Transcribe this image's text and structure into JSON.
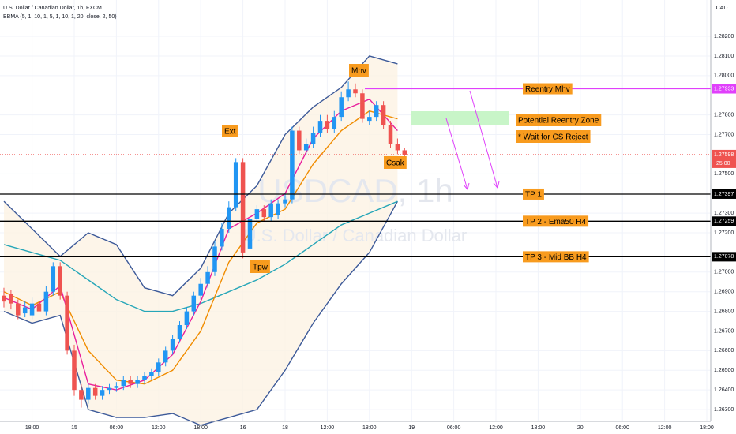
{
  "chart_data": {
    "type": "candlestick",
    "title": "U.S. Dollar / Canadian Dollar, 1h, FXCM",
    "indicator": "BBMA (5, 1, 10, 1, 5, 1, 10, 1, 20, close, 2, 50)",
    "watermark_symbol": "USDCAD, 1h",
    "watermark_name": "U.S. Dollar / Canadian Dollar",
    "currency": "CAD",
    "up_color": "#2196f3",
    "down_color": "#ef5350",
    "x": [
      0,
      1,
      2,
      3,
      4,
      5,
      6,
      7,
      8,
      9,
      10,
      11,
      12,
      13,
      14,
      15,
      16,
      17,
      18,
      19,
      20,
      21,
      22,
      23,
      24,
      25,
      26,
      27,
      28,
      29,
      30,
      31,
      32,
      33,
      34,
      35,
      36,
      37,
      38,
      39,
      40,
      41,
      42,
      43,
      44,
      45,
      46,
      47,
      48,
      49,
      50,
      51,
      52,
      53,
      54,
      55,
      56,
      57
    ],
    "open": [
      1.2688,
      1.2689,
      1.2684,
      1.2679,
      1.2678,
      1.2684,
      1.268,
      1.269,
      1.2703,
      1.2688,
      1.266,
      1.264,
      1.2635,
      1.2641,
      1.2637,
      1.264,
      1.2641,
      1.2642,
      1.2645,
      1.2643,
      1.2645,
      1.2647,
      1.2649,
      1.2654,
      1.266,
      1.2666,
      1.2673,
      1.268,
      1.2688,
      1.2694,
      1.27,
      1.2713,
      1.2722,
      1.2733,
      1.2756,
      1.2712,
      1.2727,
      1.2732,
      1.2728,
      1.2729,
      1.2735,
      1.2737,
      1.2772,
      1.2762,
      1.2765,
      1.2771,
      1.2777,
      1.2773,
      1.2779,
      1.2789,
      1.2793,
      1.2791,
      1.2777,
      1.2779,
      1.2785,
      1.2775,
      1.2765,
      1.2762
    ],
    "high": [
      1.2692,
      1.2691,
      1.2686,
      1.2685,
      1.2687,
      1.2686,
      1.2693,
      1.2705,
      1.2705,
      1.269,
      1.2663,
      1.2643,
      1.2643,
      1.2643,
      1.2642,
      1.2643,
      1.2644,
      1.2647,
      1.2647,
      1.2647,
      1.2649,
      1.2651,
      1.2656,
      1.2662,
      1.2668,
      1.2675,
      1.2682,
      1.269,
      1.2697,
      1.2703,
      1.2716,
      1.2725,
      1.2736,
      1.2758,
      1.2758,
      1.273,
      1.2734,
      1.2734,
      1.2737,
      1.2737,
      1.274,
      1.2774,
      1.2774,
      1.2768,
      1.2774,
      1.278,
      1.278,
      1.2782,
      1.2792,
      1.2797,
      1.2796,
      1.2793,
      1.2782,
      1.2787,
      1.2787,
      1.2777,
      1.2768,
      1.2763
    ],
    "low": [
      1.2682,
      1.2681,
      1.2676,
      1.2677,
      1.2676,
      1.2678,
      1.2678,
      1.2688,
      1.2686,
      1.2658,
      1.2637,
      1.2631,
      1.2633,
      1.2635,
      1.2635,
      1.2638,
      1.2639,
      1.264,
      1.2641,
      1.2641,
      1.2643,
      1.2645,
      1.2647,
      1.2652,
      1.2658,
      1.2664,
      1.2671,
      1.2678,
      1.2686,
      1.2692,
      1.2698,
      1.2711,
      1.272,
      1.2731,
      1.2707,
      1.271,
      1.2725,
      1.2726,
      1.2726,
      1.2727,
      1.2733,
      1.2735,
      1.276,
      1.276,
      1.2763,
      1.2769,
      1.2771,
      1.2771,
      1.2777,
      1.2787,
      1.2789,
      1.2776,
      1.2775,
      1.2777,
      1.2773,
      1.2763,
      1.276,
      1.2758
    ],
    "close": [
      1.2685,
      1.2684,
      1.2678,
      1.2682,
      1.2684,
      1.268,
      1.269,
      1.2703,
      1.2688,
      1.266,
      1.264,
      1.2635,
      1.2641,
      1.2637,
      1.264,
      1.2641,
      1.2642,
      1.2645,
      1.2643,
      1.2645,
      1.2647,
      1.2649,
      1.2654,
      1.266,
      1.2666,
      1.2673,
      1.268,
      1.2688,
      1.2694,
      1.27,
      1.2713,
      1.2722,
      1.2733,
      1.2756,
      1.271,
      1.2727,
      1.2732,
      1.2728,
      1.2735,
      1.2735,
      1.2737,
      1.2772,
      1.2762,
      1.2765,
      1.2771,
      1.2777,
      1.2773,
      1.2779,
      1.2789,
      1.2793,
      1.2791,
      1.2778,
      1.2779,
      1.2785,
      1.2775,
      1.2765,
      1.2762,
      1.27598
    ],
    "series": [
      {
        "color": "#3d5a99",
        "x": [
          0,
          4,
          8,
          12,
          16,
          20,
          24,
          28,
          32,
          36,
          40,
          44,
          48,
          52,
          56
        ],
        "values": [
          1.2736,
          1.2722,
          1.2708,
          1.272,
          1.2714,
          1.2692,
          1.2688,
          1.2702,
          1.273,
          1.2744,
          1.277,
          1.2784,
          1.2794,
          1.281,
          1.2806
        ]
      },
      {
        "color": "#3d5a99",
        "x": [
          0,
          4,
          8,
          12,
          16,
          20,
          24,
          28,
          32,
          36,
          40,
          44,
          48,
          52,
          56
        ],
        "values": [
          1.268,
          1.2674,
          1.2678,
          1.263,
          1.2626,
          1.2626,
          1.2628,
          1.2622,
          1.2626,
          1.263,
          1.265,
          1.2674,
          1.2694,
          1.271,
          1.2736
        ]
      },
      {
        "color": "#26a6b8",
        "x": [
          0,
          4,
          8,
          12,
          16,
          20,
          24,
          28,
          32,
          36,
          40,
          44,
          48,
          52,
          56
        ],
        "values": [
          1.2714,
          1.271,
          1.2706,
          1.2696,
          1.2686,
          1.268,
          1.268,
          1.2684,
          1.269,
          1.2696,
          1.2704,
          1.2714,
          1.2724,
          1.273,
          1.2736
        ]
      },
      {
        "color": "#f08c00",
        "x": [
          0,
          4,
          8,
          12,
          16,
          20,
          24,
          28,
          32,
          36,
          40,
          44,
          48,
          52,
          56
        ],
        "values": [
          1.269,
          1.2683,
          1.269,
          1.266,
          1.2645,
          1.2643,
          1.265,
          1.267,
          1.2705,
          1.2725,
          1.2732,
          1.2755,
          1.2772,
          1.2782,
          1.2778
        ]
      },
      {
        "color": "#e91e9c",
        "x": [
          0,
          4,
          8,
          12,
          16,
          20,
          24,
          28,
          32,
          36,
          40,
          44,
          48,
          52,
          56
        ],
        "values": [
          1.2687,
          1.2681,
          1.2693,
          1.2643,
          1.264,
          1.2645,
          1.2658,
          1.2685,
          1.2722,
          1.273,
          1.274,
          1.2768,
          1.2782,
          1.2788,
          1.2772
        ]
      }
    ],
    "xlim": [
      -0.56,
      100.56
    ],
    "xticks": [
      {
        "value": 4,
        "label": "18:00"
      },
      {
        "value": 10,
        "label": "15"
      },
      {
        "value": 16,
        "label": "06:00"
      },
      {
        "value": 22,
        "label": "12:00"
      },
      {
        "value": 28,
        "label": "18:00"
      },
      {
        "value": 34,
        "label": "16"
      },
      {
        "value": 40,
        "label": "18"
      },
      {
        "value": 46,
        "label": "12:00"
      },
      {
        "value": 52,
        "label": "18:00"
      },
      {
        "value": 58,
        "label": "19"
      },
      {
        "value": 64,
        "label": "06:00"
      },
      {
        "value": 70,
        "label": "12:00"
      },
      {
        "value": 76,
        "label": "18:00"
      },
      {
        "value": 82,
        "label": "20"
      },
      {
        "value": 88,
        "label": "06:00"
      },
      {
        "value": 94,
        "label": "12:00"
      },
      {
        "value": 100,
        "label": "18:00"
      }
    ],
    "ylim": [
      1.2624,
      1.28385
    ],
    "yticks": [
      {
        "value": 1.263,
        "label": "1.26300"
      },
      {
        "value": 1.264,
        "label": "1.26400"
      },
      {
        "value": 1.265,
        "label": "1.26500"
      },
      {
        "value": 1.266,
        "label": "1.26600"
      },
      {
        "value": 1.267,
        "label": "1.26700"
      },
      {
        "value": 1.268,
        "label": "1.26800"
      },
      {
        "value": 1.269,
        "label": "1.26900"
      },
      {
        "value": 1.27,
        "label": "1.27000"
      },
      {
        "value": 1.272,
        "label": "1.27200"
      },
      {
        "value": 1.273,
        "label": "1.27300"
      },
      {
        "value": 1.275,
        "label": "1.27500"
      },
      {
        "value": 1.277,
        "label": "1.27700"
      },
      {
        "value": 1.278,
        "label": "1.27800"
      },
      {
        "value": 1.28,
        "label": "1.28000"
      },
      {
        "value": 1.281,
        "label": "1.28100"
      },
      {
        "value": 1.282,
        "label": "1.28200"
      }
    ],
    "grid": true,
    "levels": [
      {
        "value": 1.27933,
        "label": "1.27933",
        "text": "Reentry Mhv",
        "color": "#e040fb"
      },
      {
        "value": 1.27397,
        "label": "1.27397",
        "text": "TP 1",
        "color": "#000000"
      },
      {
        "value": 1.27259,
        "label": "1.27259",
        "text": "TP 2 - Ema50 H4",
        "color": "#000000"
      },
      {
        "value": 1.27078,
        "label": "1.27078",
        "text": "TP 3 - Mid BB H4",
        "color": "#000000"
      }
    ],
    "last_price": {
      "value": 1.27598,
      "label": "1.27598"
    },
    "countdown": "25:00",
    "annotations": [
      "Ext",
      "Tpw",
      "Mhv",
      "Csak",
      "Potential Reentry Zone",
      "* Wait for CS Reject"
    ]
  }
}
